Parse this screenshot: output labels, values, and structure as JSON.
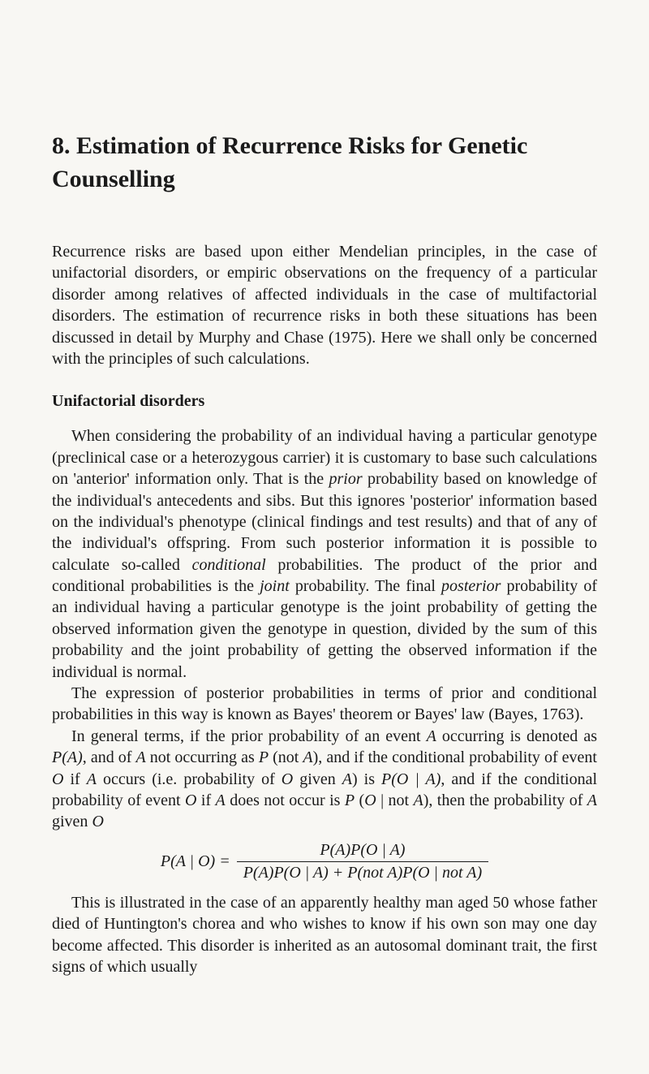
{
  "chapter": {
    "number": "8.",
    "title": "Estimation of Recurrence Risks for Genetic Counselling"
  },
  "intro": "Recurrence risks are based upon either Mendelian principles, in the case of unifactorial disorders, or empiric observations on the frequency of a particular disorder among relatives of affected individuals in the case of multifactorial disorders. The estimation of recurrence risks in both these situations has been discussed in detail by Murphy and Chase (1975). Here we shall only be concerned with the principles of such calculations.",
  "section_heading": "Unifactorial disorders",
  "para1_pre": "When considering the probability of an individual having a particular genotype (preclinical case or a heterozygous carrier) it is customary to base such calculations on 'anterior' information only. That is the ",
  "para1_prior": "prior",
  "para1_mid1": " probability based on knowledge of the individual's antecedents and sibs. But this ignores 'posterior' information based on the individual's phenotype (clinical findings and test results) and that of any of the individual's offspring. From such posterior information it is possible to calculate so-called ",
  "para1_conditional": "conditional",
  "para1_mid2": " probabilities. The product of the prior and conditional probabilities is the ",
  "para1_joint": "joint",
  "para1_mid3": " probability. The final ",
  "para1_posterior": "posterior",
  "para1_end": " probability of an individual having a particular genotype is the joint probability of getting the observed information given the genotype in question, divided by the sum of this probability and the joint probability of getting the observed information if the individual is normal.",
  "para2": "The expression of posterior probabilities in terms of prior and conditional probabilities in this way is known as Bayes' theorem or Bayes' law (Bayes, 1763).",
  "para3_pre": "In general terms, if the prior probability of an event ",
  "para3_A1": "A",
  "para3_t1": " occurring is denoted as ",
  "para3_PA": "P(A)",
  "para3_t2": ", and of ",
  "para3_A2": "A",
  "para3_t3": " not occurring as ",
  "para3_P": "P",
  "para3_t4": " (not ",
  "para3_A3": "A",
  "para3_t5": "), and if the conditional probability of event ",
  "para3_O1": "O",
  "para3_t6": " if ",
  "para3_A4": "A",
  "para3_t7": " occurs (i.e. probability of ",
  "para3_O2": "O",
  "para3_t8": " given ",
  "para3_A5": "A",
  "para3_t9": ") is ",
  "para3_POA": "P(O | A)",
  "para3_t10": ", and if the conditional probability of event ",
  "para3_O3": "O",
  "para3_t11": " if ",
  "para3_A6": "A",
  "para3_t12": " does not occur is ",
  "para3_P2": "P",
  "para3_t13": " (",
  "para3_O4": "O",
  "para3_t14": " | not ",
  "para3_A7": "A",
  "para3_t15": "), then the probability of ",
  "para3_A8": "A",
  "para3_t16": " given ",
  "para3_O5": "O",
  "formula": {
    "left": "P(A | O) = ",
    "numerator": "P(A)P(O | A)",
    "denominator": "P(A)P(O | A) + P(not A)P(O | not A)"
  },
  "para4": "This is illustrated in the case of an apparently healthy man aged 50 whose father died of Huntington's chorea and who wishes to know if his own son may one day become affected. This disorder is inherited as an autosomal dominant trait, the first signs of which usually"
}
